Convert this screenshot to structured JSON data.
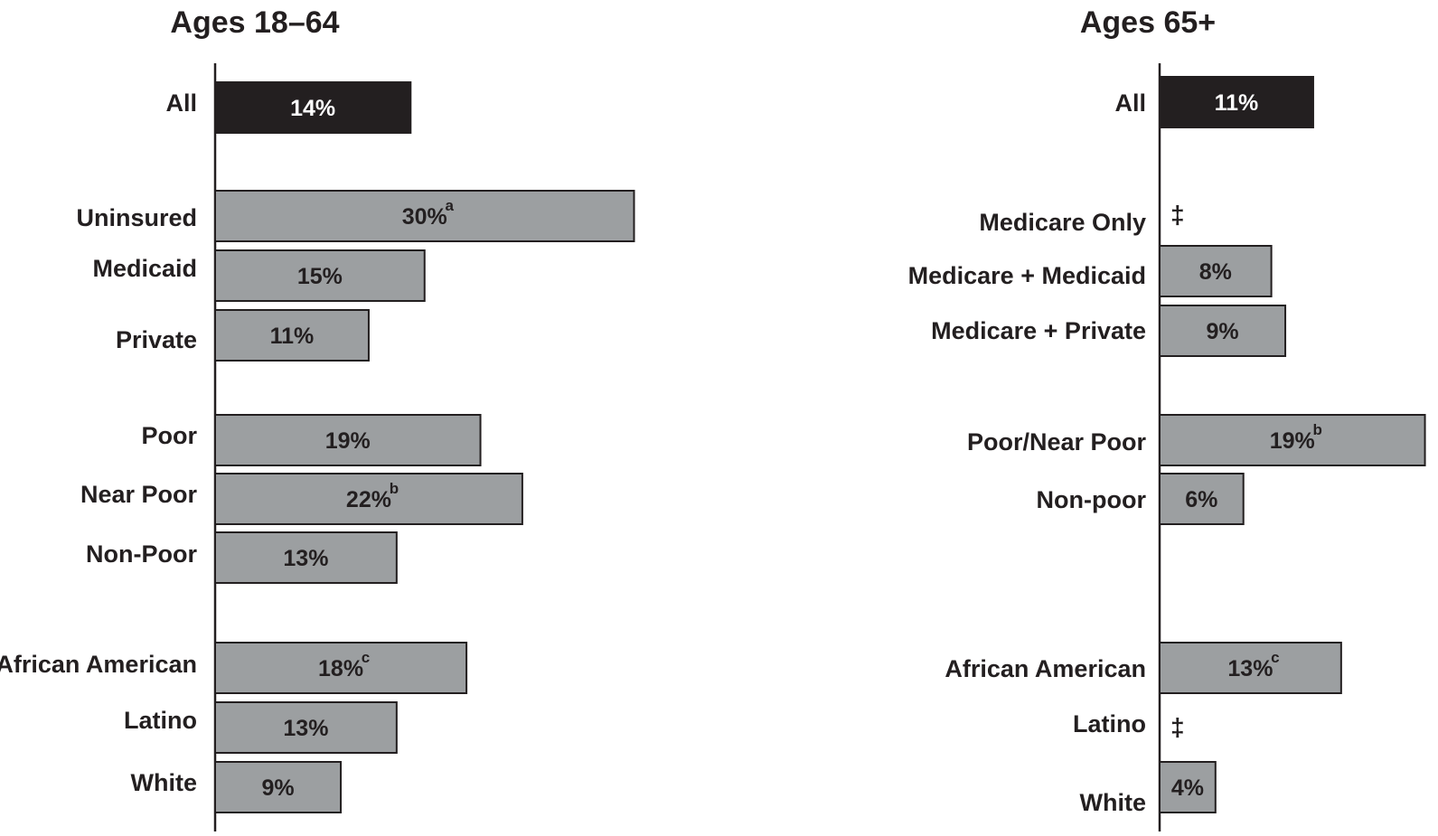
{
  "chart_data": [
    {
      "type": "bar",
      "orientation": "horizontal",
      "title": "Ages 18–64",
      "xlabel": "",
      "ylabel": "",
      "grid": false,
      "colors": {
        "highlight": "#231f20",
        "bar": "#9c9fa1",
        "stroke": "#231f20"
      },
      "categories": [
        "All",
        "Uninsured",
        "Medicaid",
        "Private",
        "Poor",
        "Near Poor",
        "Non-Poor",
        "African American",
        "Latino",
        "White"
      ],
      "values": [
        14,
        30,
        15,
        11,
        19,
        22,
        13,
        18,
        13,
        9
      ],
      "labels": [
        "14%",
        "30%",
        "15%",
        "11%",
        "19%",
        "22%",
        "13%",
        "18%",
        "13%",
        "9%"
      ],
      "footnotes": [
        "",
        "a",
        "",
        "",
        "",
        "b",
        "",
        "c",
        "",
        ""
      ],
      "highlight": [
        true,
        false,
        false,
        false,
        false,
        false,
        false,
        false,
        false,
        false
      ]
    },
    {
      "type": "bar",
      "orientation": "horizontal",
      "title": "Ages 65+",
      "xlabel": "",
      "ylabel": "",
      "grid": false,
      "colors": {
        "highlight": "#231f20",
        "bar": "#9c9fa1",
        "stroke": "#231f20"
      },
      "categories": [
        "All",
        "Medicare Only",
        "Medicare + Medicaid",
        "Medicare + Private",
        "Poor/Near Poor",
        "Non-poor",
        "African American",
        "Latino",
        "White"
      ],
      "values": [
        11,
        null,
        8,
        9,
        19,
        6,
        13,
        null,
        4
      ],
      "labels": [
        "11%",
        "‡",
        "8%",
        "9%",
        "19%",
        "6%",
        "13%",
        "‡",
        "4%"
      ],
      "footnotes": [
        "",
        "",
        "",
        "",
        "b",
        "",
        "c",
        "",
        ""
      ],
      "highlight": [
        true,
        false,
        false,
        false,
        false,
        false,
        false,
        false,
        false
      ]
    }
  ]
}
